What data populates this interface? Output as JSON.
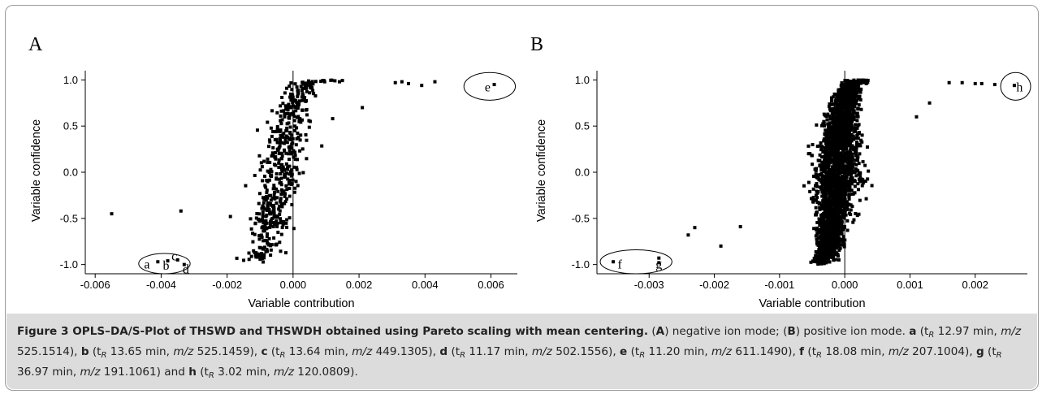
{
  "chart_data": [
    {
      "panel_label": "A",
      "type": "scatter",
      "xlabel": "Variable contribution",
      "ylabel": "Variable confidence",
      "xlim": [
        -0.0063,
        0.0068
      ],
      "ylim": [
        -1.1,
        1.1
      ],
      "x_ticks": [
        -0.006,
        -0.004,
        -0.002,
        0.0,
        0.002,
        0.004,
        0.006
      ],
      "x_tick_labels": [
        "-0.006",
        "-0.004",
        "-0.002",
        "0.000",
        "0.002",
        "0.004",
        "0.006"
      ],
      "y_ticks": [
        -1.0,
        -0.5,
        0.0,
        0.5,
        1.0
      ],
      "y_tick_labels": [
        "-1.0",
        "-0.5",
        "0.0",
        "0.5",
        "1.0"
      ],
      "grid": false,
      "reference_line_x": 0.0,
      "points": [
        [
          -0.0055,
          -0.45
        ],
        [
          -0.0034,
          -0.42
        ],
        [
          -0.0019,
          -0.48
        ],
        [
          -0.0041,
          -0.97
        ],
        [
          -0.0038,
          -0.96
        ],
        [
          -0.0035,
          -0.95
        ],
        [
          -0.0033,
          -1.0
        ],
        [
          0.0061,
          0.95
        ],
        [
          0.0031,
          0.97
        ],
        [
          0.0033,
          0.98
        ],
        [
          0.0035,
          0.96
        ],
        [
          0.0039,
          0.94
        ],
        [
          0.0043,
          0.98
        ],
        [
          0.0021,
          0.7
        ],
        [
          0.0012,
          0.58
        ]
      ],
      "curve": {
        "count": 520,
        "center": -0.0004,
        "width": 0.00045,
        "spread": 0.00042,
        "seed": 11
      },
      "annotations": [
        {
          "text": "a",
          "x": -0.00443,
          "y": -1.0
        },
        {
          "text": "b",
          "x": -0.00385,
          "y": -1.01
        },
        {
          "text": "c",
          "x": -0.0036,
          "y": -0.91
        },
        {
          "text": "d",
          "x": -0.00325,
          "y": -1.05
        },
        {
          "text": "e",
          "x": 0.0059,
          "y": 0.92
        }
      ],
      "ellipses": [
        {
          "cx": -0.0039,
          "cy": -0.99,
          "rx": 0.00078,
          "ry": 0.11
        },
        {
          "cx": 0.00596,
          "cy": 0.93,
          "rx": 0.00078,
          "ry": 0.15
        }
      ]
    },
    {
      "panel_label": "B",
      "type": "scatter",
      "xlabel": "Variable contribution",
      "ylabel": "Variable confidence",
      "xlim": [
        -0.0038,
        0.0028
      ],
      "ylim": [
        -1.1,
        1.1
      ],
      "x_ticks": [
        -0.003,
        -0.002,
        -0.001,
        0.0,
        0.001,
        0.002
      ],
      "x_tick_labels": [
        "-0.003",
        "-0.002",
        "-0.001",
        "0.000",
        "0.001",
        "0.002"
      ],
      "y_ticks": [
        -1.0,
        -0.5,
        0.0,
        0.5,
        1.0
      ],
      "y_tick_labels": [
        "-1.0",
        "-0.5",
        "0.0",
        "0.5",
        "1.0"
      ],
      "grid": false,
      "reference_line_x": 0.0,
      "points": [
        [
          -0.00355,
          -0.97
        ],
        [
          -0.00285,
          -0.98
        ],
        [
          -0.00285,
          -0.93
        ],
        [
          0.0026,
          0.94
        ],
        [
          -0.0024,
          -0.68
        ],
        [
          -0.0023,
          -0.6
        ],
        [
          -0.0019,
          -0.8
        ],
        [
          -0.0016,
          -0.59
        ],
        [
          0.0016,
          0.97
        ],
        [
          0.0018,
          0.97
        ],
        [
          0.002,
          0.96
        ],
        [
          0.0021,
          0.96
        ],
        [
          0.0023,
          0.95
        ],
        [
          0.0013,
          0.75
        ],
        [
          0.0011,
          0.6
        ]
      ],
      "curve": {
        "count": 2600,
        "center": -0.00012,
        "width": 0.00012,
        "spread": 0.00018,
        "seed": 23
      },
      "annotations": [
        {
          "text": "f",
          "x": -0.00345,
          "y": -1.0
        },
        {
          "text": "g",
          "x": -0.00285,
          "y": -1.0
        },
        {
          "text": "h",
          "x": 0.00268,
          "y": 0.92
        }
      ],
      "ellipses": [
        {
          "cx": -0.0032,
          "cy": -0.97,
          "rx": 0.00055,
          "ry": 0.13
        },
        {
          "cx": 0.00262,
          "cy": 0.93,
          "rx": 0.00023,
          "ry": 0.15
        }
      ]
    }
  ],
  "caption": {
    "heading": "Figure 3 OPLS–DA/S-Plot of THSWD and THSWDH obtained using Pareto scaling with mean centering.",
    "intro": [
      {
        "t": " ("
      },
      {
        "t": "A",
        "b": true
      },
      {
        "t": ") negative ion mode; ("
      },
      {
        "t": "B",
        "b": true
      },
      {
        "t": ") positive ion mode. "
      }
    ],
    "compounds": [
      {
        "letter": "a",
        "tr": "12.97 min,",
        "mz": "525.1514"
      },
      {
        "letter": "b",
        "tr": "13.65 min,",
        "mz": "525.1459"
      },
      {
        "letter": "c",
        "tr": "13.64 min,",
        "mz": "449.1305"
      },
      {
        "letter": "d",
        "tr": "11.17 min,",
        "mz": "502.1556"
      },
      {
        "letter": "e",
        "tr": "11.20 min,",
        "mz": "611.1490"
      },
      {
        "letter": "f",
        "tr": "18.08 min,",
        "mz": "207.1004"
      },
      {
        "letter": "g",
        "tr": "36.97 min,",
        "mz": "191.1061"
      },
      {
        "letter": "h",
        "tr": "3.02 min,",
        "mz": "120.0809"
      }
    ],
    "t_symbol": "t",
    "t_subscript": "R",
    "mz_label": "m/z",
    "separator": ", ",
    "last_joiner": " and ",
    "ending": "."
  }
}
